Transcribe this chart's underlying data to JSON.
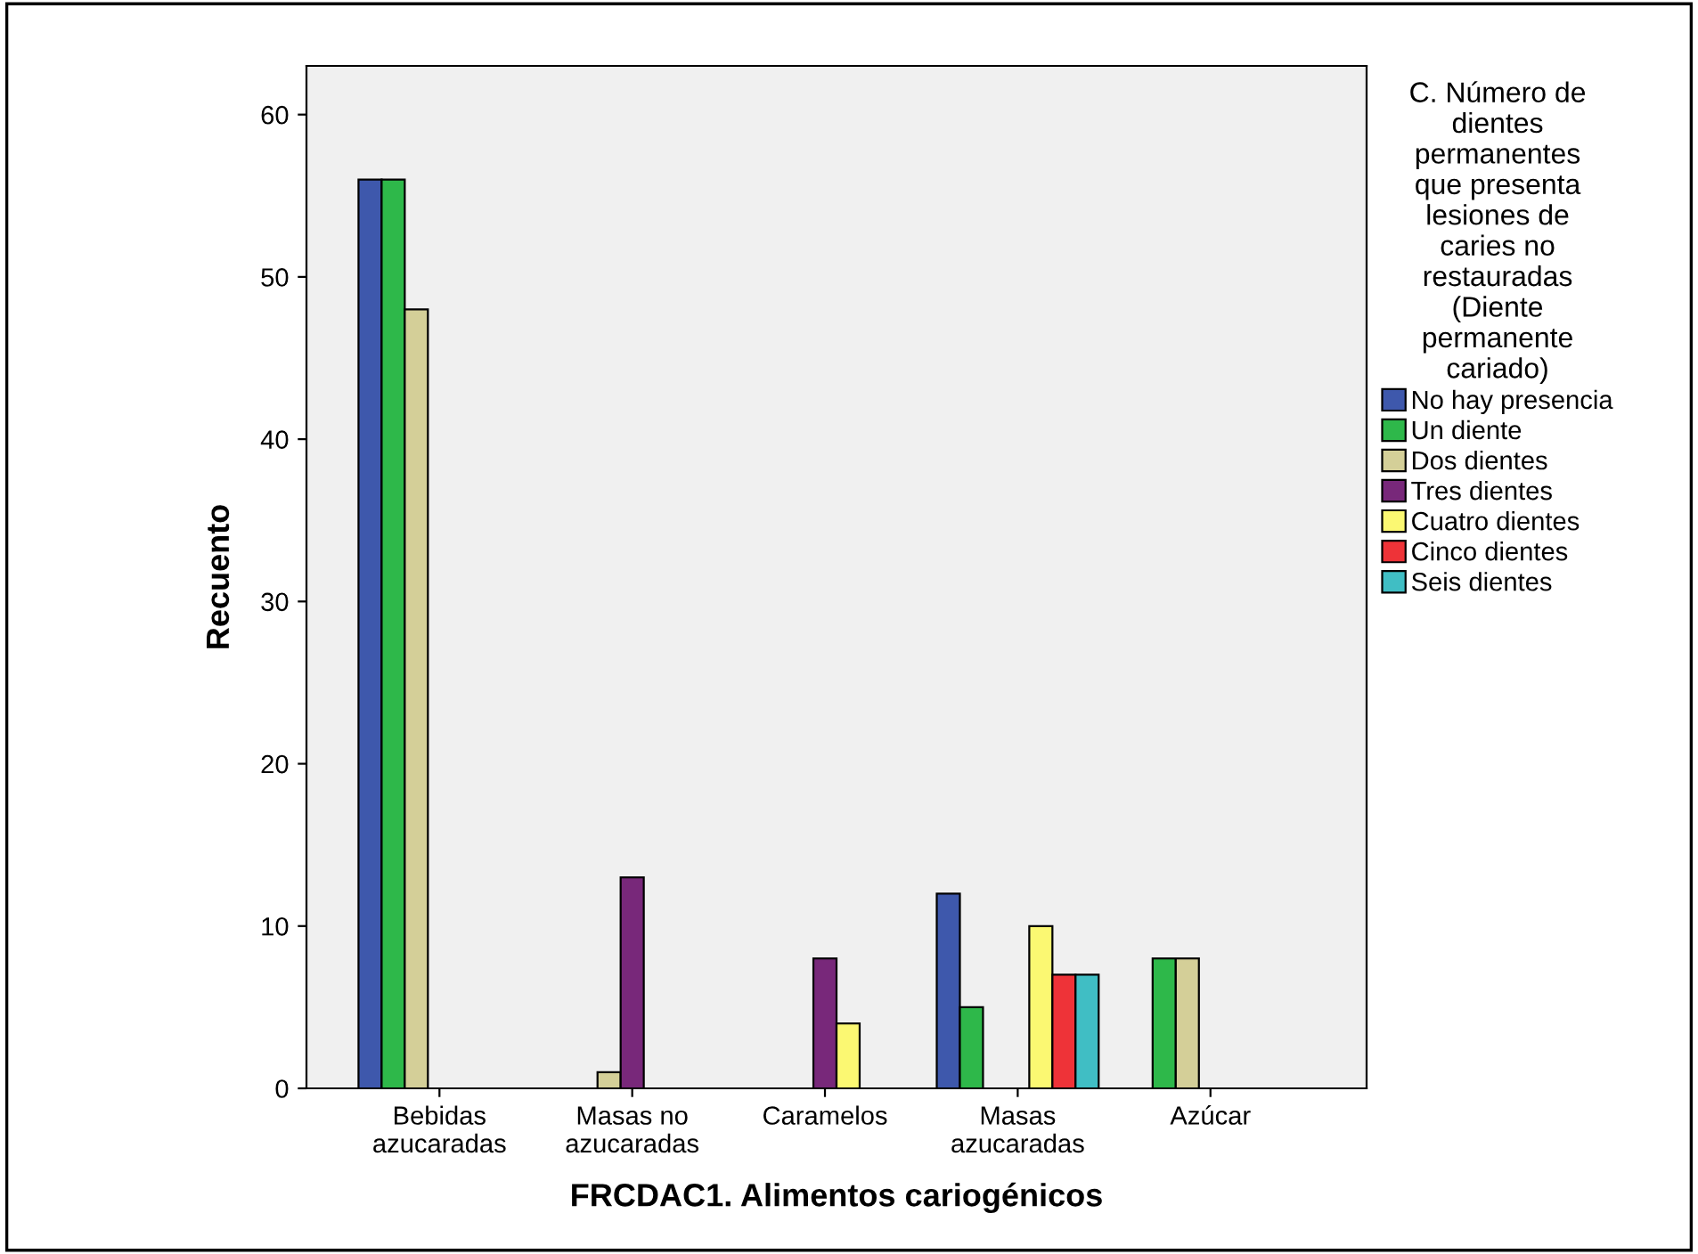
{
  "chart_data": {
    "type": "bar",
    "xlabel": "FRCDAC1. Alimentos cariogénicos",
    "ylabel": "Recuento",
    "legend_title": "C. Número de\ndientes\npermanentes\nque presenta\nlesiones de\ncaries no\nrestauradas\n(Diente\npermanente\ncariado)",
    "categories": [
      "Bebidas\nazucaradas",
      "Masas no\nazucaradas",
      "Caramelos",
      "Masas\nazucaradas",
      "Azúcar"
    ],
    "series": [
      {
        "name": "No hay presencia",
        "color": "#3e58ac",
        "values": [
          56,
          null,
          null,
          12,
          null
        ]
      },
      {
        "name": "Un diente",
        "color": "#2eb84a",
        "values": [
          56,
          null,
          null,
          5,
          8
        ]
      },
      {
        "name": "Dos dientes",
        "color": "#d4cf98",
        "values": [
          48,
          1,
          null,
          null,
          8
        ]
      },
      {
        "name": "Tres dientes",
        "color": "#78287a",
        "values": [
          null,
          13,
          8,
          null,
          null
        ]
      },
      {
        "name": "Cuatro dientes",
        "color": "#fbf872",
        "values": [
          null,
          null,
          4,
          10,
          null
        ]
      },
      {
        "name": "Cinco dientes",
        "color": "#ee3338",
        "values": [
          null,
          null,
          null,
          7,
          null
        ]
      },
      {
        "name": "Seis dientes",
        "color": "#40bec4",
        "values": [
          null,
          null,
          null,
          7,
          null
        ]
      }
    ],
    "ylim": [
      0,
      63
    ],
    "yticks": [
      0,
      10,
      20,
      30,
      40,
      50,
      60
    ],
    "grid": false,
    "legend": "right"
  }
}
